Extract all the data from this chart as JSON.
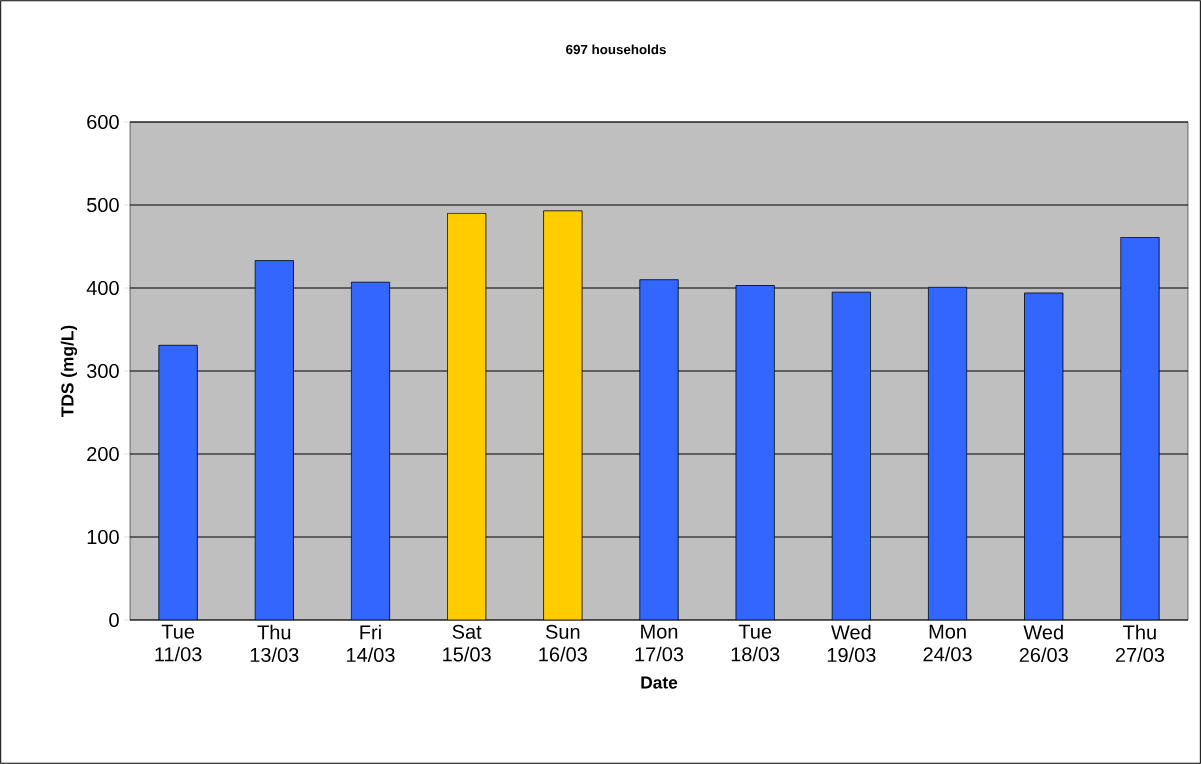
{
  "chart_data": {
    "type": "bar",
    "title": "697 households",
    "xlabel": "Date",
    "ylabel": "TDS (mg/L)",
    "categories": [
      "Tue 11/03",
      "Thu 13/03",
      "Fri 14/03",
      "Sat 15/03",
      "Sun 16/03",
      "Mon 17/03",
      "Tue 18/03",
      "Wed 19/03",
      "Mon 24/03",
      "Wed 26/03",
      "Thu 27/03"
    ],
    "values": [
      331,
      433,
      407,
      490,
      493,
      410,
      403,
      395,
      401,
      394,
      461
    ],
    "colors": [
      "#3366ff",
      "#3366ff",
      "#3366ff",
      "#ffcc00",
      "#ffcc00",
      "#3366ff",
      "#3366ff",
      "#3366ff",
      "#3366ff",
      "#3366ff",
      "#3366ff"
    ],
    "ylim": [
      0,
      600
    ],
    "yticks": [
      0,
      100,
      200,
      300,
      400,
      500,
      600
    ],
    "grid": "y"
  }
}
